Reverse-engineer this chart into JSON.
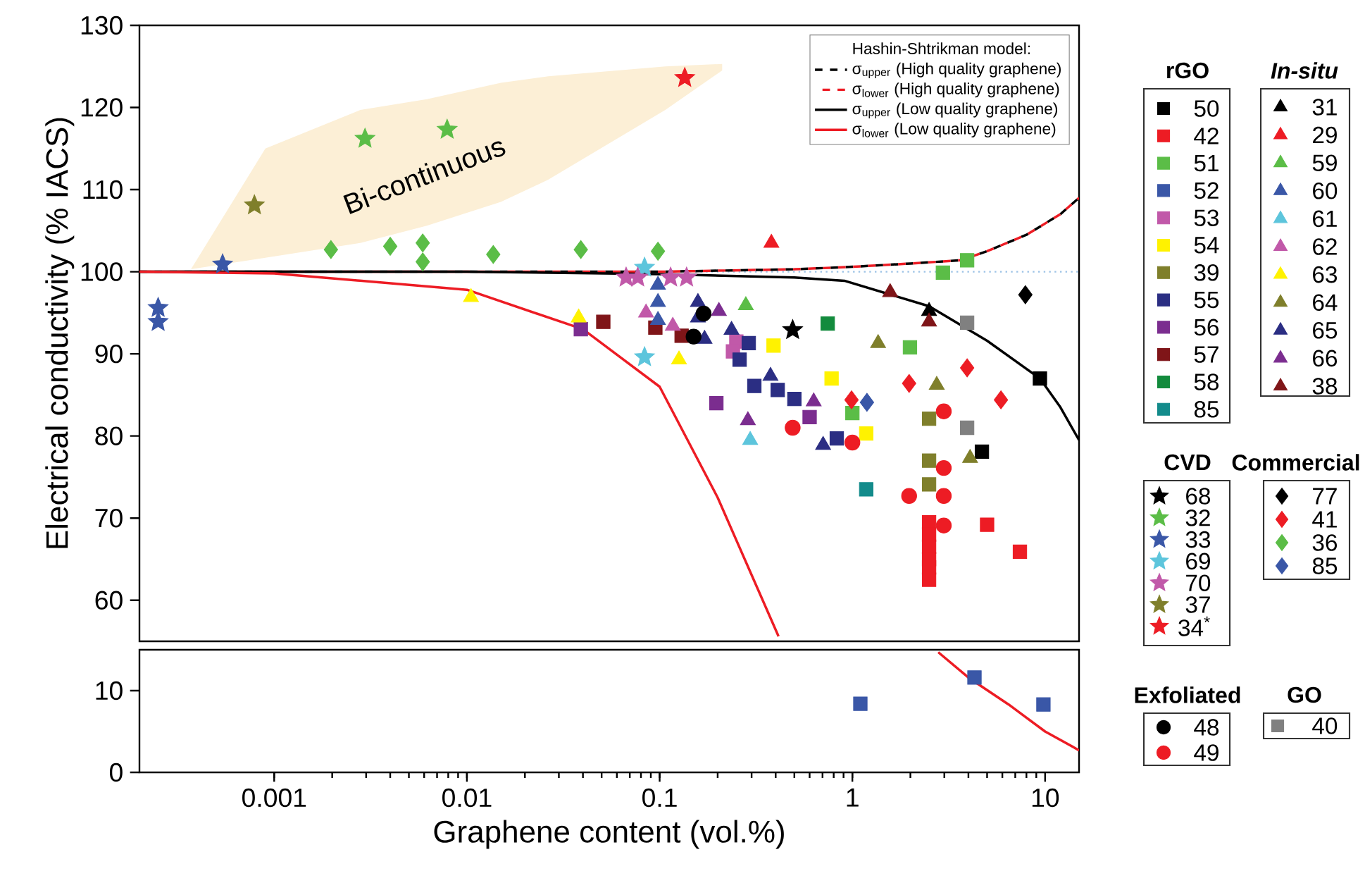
{
  "chart_data": [
    {
      "type": "scatter",
      "xlim": [
        0.0002,
        15
      ],
      "ylim": [
        55,
        130
      ],
      "yticks": [
        60,
        70,
        80,
        90,
        100,
        110,
        120,
        130
      ],
      "ylabel": "Electrical conductivity (% IACS)",
      "log": "x",
      "tick_labels": "y",
      "legend": "right",
      "legend_title": "Hashin-Shtrikman model:",
      "annotations": [
        "rGO",
        "In-situ",
        "CVD",
        "Commercial",
        "Exfoliated",
        "GO",
        "Bi-continuous"
      ],
      "ref_lines": [
        {
          "axis": "y",
          "value": 100,
          "color": "#9dc3e6",
          "line_style": "dotted"
        }
      ],
      "series": [
        {
          "name": "50",
          "color": "#000000",
          "marker": "square",
          "x": [
            4.7,
            9.4
          ],
          "values": [
            78.1,
            87.0
          ]
        },
        {
          "name": "42",
          "color": "#ed1c24",
          "marker": "square",
          "x": [
            2.5,
            2.5,
            2.5,
            2.5,
            2.5,
            2.5,
            5.0,
            7.4
          ],
          "values": [
            69.5,
            68,
            66.5,
            65,
            64,
            62.5,
            69.2,
            65.9
          ]
        },
        {
          "name": "51",
          "color": "#5bbd47",
          "marker": "square",
          "x": [
            2.95,
            3.94,
            1.99,
            1.0
          ],
          "values": [
            99.9,
            101.4,
            90.8,
            82.8
          ]
        },
        {
          "name": "52",
          "color": "#3a57a7",
          "marker": "square"
        },
        {
          "name": "53",
          "color": "#c159a9",
          "marker": "square",
          "x": [
            0.25,
            0.24
          ],
          "values": [
            91.5,
            90.3
          ]
        },
        {
          "name": "54",
          "color": "#fff200",
          "marker": "square",
          "x": [
            0.39,
            0.78,
            1.18
          ],
          "values": [
            91.0,
            87.0,
            80.3
          ]
        },
        {
          "name": "39",
          "color": "#7f7f2b",
          "marker": "square",
          "x": [
            2.5,
            2.5,
            2.5
          ],
          "values": [
            82.1,
            77.0,
            74.1
          ]
        },
        {
          "name": "55",
          "color": "#2b2e83",
          "marker": "square",
          "x": [
            0.29,
            0.26,
            0.31,
            0.41,
            0.5,
            0.83
          ],
          "values": [
            91.3,
            89.3,
            86.1,
            85.6,
            84.5,
            79.7
          ]
        },
        {
          "name": "56",
          "color": "#7b2d8f",
          "marker": "square",
          "x": [
            0.197,
            0.6,
            0.039
          ],
          "values": [
            84.0,
            82.3,
            93.0
          ]
        },
        {
          "name": "57",
          "color": "#7f1518",
          "marker": "square",
          "x": [
            0.051,
            0.095,
            0.13
          ],
          "values": [
            93.9,
            93.2,
            92.2
          ]
        },
        {
          "name": "58",
          "color": "#138b3d",
          "marker": "square",
          "x": [
            0.745
          ],
          "values": [
            93.7
          ]
        },
        {
          "name": "85",
          "color": "#138b8b",
          "marker": "square",
          "x": [
            1.18
          ],
          "values": [
            73.5
          ]
        },
        {
          "name": "31",
          "color": "#000000",
          "marker": "triangle",
          "x": [
            2.5
          ],
          "values": [
            95.2
          ]
        },
        {
          "name": "29",
          "color": "#ed1c24",
          "marker": "triangle",
          "x": [
            0.38
          ],
          "values": [
            103.5
          ]
        },
        {
          "name": "59",
          "color": "#5bbd47",
          "marker": "triangle",
          "x": [
            0.28
          ],
          "values": [
            95.9
          ]
        },
        {
          "name": "60",
          "color": "#3a57a7",
          "marker": "triangle",
          "x": [
            0.098,
            0.098,
            0.098
          ],
          "values": [
            98.4,
            96.3,
            94.1
          ]
        },
        {
          "name": "61",
          "color": "#5dc5dc",
          "marker": "triangle",
          "x": [
            0.295
          ],
          "values": [
            79.5
          ]
        },
        {
          "name": "62",
          "color": "#c159a9",
          "marker": "triangle",
          "x": [
            0.085,
            0.117
          ],
          "values": [
            95.0,
            93.4
          ]
        },
        {
          "name": "63",
          "color": "#fff200",
          "marker": "triangle",
          "x": [
            0.0105,
            0.038,
            0.126
          ],
          "values": [
            96.9,
            94.4,
            89.3
          ]
        },
        {
          "name": "64",
          "color": "#7f7f2b",
          "marker": "triangle",
          "x": [
            1.36,
            2.74,
            4.08
          ],
          "values": [
            91.3,
            86.2,
            77.3
          ]
        },
        {
          "name": "65",
          "color": "#2b2e83",
          "marker": "triangle",
          "x": [
            0.158,
            0.158,
            0.171,
            0.236,
            0.376,
            0.705
          ],
          "values": [
            96.3,
            94.4,
            91.8,
            92.9,
            87.3,
            78.9
          ]
        },
        {
          "name": "66",
          "color": "#7b2d8f",
          "marker": "triangle",
          "x": [
            0.203,
            0.63,
            0.287
          ],
          "values": [
            95.2,
            84.2,
            81.9
          ]
        },
        {
          "name": "38",
          "color": "#7f1518",
          "marker": "triangle",
          "x": [
            1.57,
            2.5
          ],
          "values": [
            97.5,
            93.9
          ]
        },
        {
          "name": "68",
          "color": "#000000",
          "marker": "star",
          "x": [
            0.49
          ],
          "values": [
            92.9
          ]
        },
        {
          "name": "32",
          "color": "#5bbd47",
          "marker": "star",
          "x": [
            0.00296,
            0.0079
          ],
          "values": [
            116.2,
            117.3
          ]
        },
        {
          "name": "33",
          "color": "#3a57a7",
          "marker": "star",
          "x": [
            0.00054,
            0.00025,
            0.00025
          ],
          "values": [
            100.9,
            95.6,
            93.9
          ]
        },
        {
          "name": "69",
          "color": "#5dc5dc",
          "marker": "star",
          "x": [
            0.0835,
            0.0835
          ],
          "values": [
            100.5,
            89.6
          ]
        },
        {
          "name": "70",
          "color": "#c159a9",
          "marker": "star",
          "x": [
            0.067,
            0.077,
            0.114,
            0.138
          ],
          "values": [
            99.3,
            99.3,
            99.3,
            99.3
          ]
        },
        {
          "name": "37",
          "color": "#7f7f2b",
          "marker": "star",
          "x": [
            0.00079
          ],
          "values": [
            108.1
          ]
        },
        {
          "name": "34$^{*}$",
          "color": "#ed1c24",
          "marker": "star",
          "x": [
            0.135
          ],
          "values": [
            123.6
          ]
        },
        {
          "name": "77",
          "color": "#000000",
          "marker": "diamond",
          "x": [
            7.9
          ],
          "values": [
            97.2
          ]
        },
        {
          "name": "41",
          "color": "#ed1c24",
          "marker": "diamond",
          "x": [
            3.94,
            1.97,
            5.9,
            0.99
          ],
          "values": [
            88.3,
            86.4,
            84.4,
            84.4
          ]
        },
        {
          "name": "36",
          "color": "#5bbd47",
          "marker": "diamond",
          "x": [
            0.00197,
            0.004,
            0.0059,
            0.0059,
            0.0137,
            0.039,
            0.098
          ],
          "values": [
            102.7,
            103.1,
            103.5,
            101.2,
            102.1,
            102.7,
            102.5
          ]
        },
        {
          "name": "85",
          "color": "#3a57a7",
          "marker": "diamond",
          "x": [
            1.19
          ],
          "values": [
            84.1
          ]
        },
        {
          "name": "48",
          "color": "#000000",
          "marker": "circle",
          "x": [
            0.15,
            0.169
          ],
          "values": [
            92.1,
            94.9
          ]
        },
        {
          "name": "49",
          "color": "#ed1c24",
          "marker": "circle",
          "x": [
            0.49,
            1.0,
            2.98,
            2.98,
            2.98,
            1.97,
            2.98
          ],
          "values": [
            81.0,
            79.2,
            83.0,
            76.1,
            72.7,
            72.7,
            69.1
          ]
        },
        {
          "name": "40",
          "color": "#808080",
          "marker": "square",
          "x": [
            3.94,
            3.94
          ],
          "values": [
            93.8,
            81.0
          ]
        },
        {
          "type": "line",
          "name": "σ$_{upper}$ (High quality graphene)",
          "color": "#000000",
          "line_style": "dashed",
          "x": [
            0.0002,
            0.1,
            0.5,
            1,
            2,
            3.66,
            5,
            8,
            12,
            15
          ],
          "values": [
            100,
            100,
            100.3,
            100.6,
            101,
            101.4,
            102.5,
            104.5,
            107,
            109
          ]
        },
        {
          "type": "line",
          "name": "σ$_{lower}$ (High quality graphene)",
          "color": "#ed1c24",
          "line_style": "dashed",
          "x": [
            0.0002,
            0.1,
            0.5,
            1,
            2,
            3.66,
            5,
            8,
            12,
            15
          ],
          "values": [
            100,
            100,
            100.3,
            100.6,
            101,
            101.4,
            102.5,
            104.5,
            107,
            109
          ]
        },
        {
          "type": "line",
          "name": "σ$_{upper}$ (Low quality graphene)",
          "color": "#000000",
          "line_style": "solid",
          "x": [
            0.0002,
            0.01,
            0.1,
            0.5,
            0.91,
            2.5,
            5,
            9.4,
            12,
            15
          ],
          "values": [
            100,
            100,
            99.7,
            99.3,
            98.9,
            95.8,
            91.6,
            87.0,
            83.5,
            79.5
          ]
        },
        {
          "type": "line",
          "name": "σ$_{lower}$ (Low quality graphene)",
          "color": "#ed1c24",
          "line_style": "solid",
          "x": [
            0.0002,
            0.001,
            0.01,
            0.04,
            0.1,
            0.2,
            0.35,
            0.414
          ],
          "values": [
            100,
            99.8,
            97.8,
            93,
            86,
            72.5,
            59.5,
            55.6
          ]
        }
      ]
    },
    {
      "type": "scatter",
      "xlim": [
        0.0002,
        15
      ],
      "xticks": [
        0.001,
        0.01,
        0.1,
        1,
        10
      ],
      "ylim": [
        0,
        15
      ],
      "yticks": [
        0,
        10
      ],
      "xlabel": "Graphene content (vol.%)",
      "log": "x",
      "series": [
        {
          "color": "#3a57a7",
          "marker": "square",
          "x": [
            1.1,
            4.3,
            9.8
          ],
          "values": [
            8.4,
            11.6,
            8.3
          ]
        },
        {
          "type": "line",
          "color": "#ed1c24",
          "line_style": "solid",
          "x": [
            2.79,
            4,
            6.47,
            10,
            15
          ],
          "values": [
            14.7,
            11.6,
            8.3,
            5.0,
            2.7
          ]
        }
      ]
    }
  ]
}
